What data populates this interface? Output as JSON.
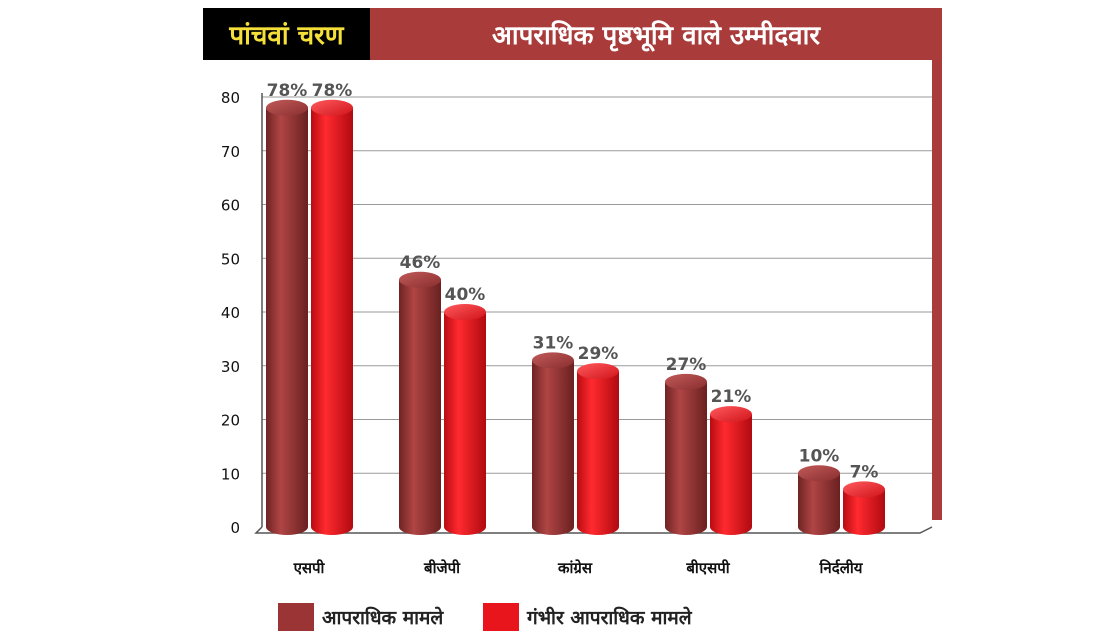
{
  "header": {
    "phase": "पांचवां चरण",
    "title": "आपराधिक पृष्ठभूमि वाले उम्मीदवार"
  },
  "colors": {
    "dark_bar": "#9b3535",
    "red_bar": "#e8151d",
    "frame": "#a93b3b",
    "phase_text": "#f5e03a"
  },
  "chart_data": {
    "type": "bar",
    "categories": [
      "एसपी",
      "बीजेपी",
      "कांग्रेस",
      "बीएसपी",
      "निर्दलीय"
    ],
    "series": [
      {
        "name": "आपराधिक मामले",
        "values": [
          78,
          46,
          31,
          27,
          10
        ],
        "labels": [
          "78%",
          "46%",
          "31%",
          "27%",
          "10%"
        ]
      },
      {
        "name": "गंभीर आपराधिक मामले",
        "values": [
          78,
          40,
          29,
          21,
          7
        ],
        "labels": [
          "78%",
          "40%",
          "29%",
          "21%",
          "7%"
        ]
      }
    ],
    "yticks": [
      0,
      10,
      20,
      30,
      40,
      50,
      60,
      70,
      80
    ],
    "ylim": [
      0,
      80
    ],
    "grid": true,
    "legend_position": "bottom-left"
  }
}
